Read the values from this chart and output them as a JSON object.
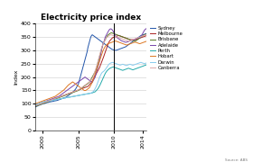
{
  "title": "Electricity price index",
  "ylabel": "Index",
  "source": "Source: ABS",
  "x_ticks": [
    "2000",
    "2005",
    "2010",
    "2014"
  ],
  "vline_year": 2010,
  "year_start": 1999,
  "year_end": 2014.5,
  "ylim": [
    0,
    400
  ],
  "yticks": [
    0,
    50,
    100,
    150,
    200,
    250,
    300,
    350,
    400
  ],
  "cities": [
    "Sydney",
    "Melbourne",
    "Brisbane",
    "Adelaide",
    "Perth",
    "Hobart",
    "Darwin",
    "Canberra"
  ],
  "colors": {
    "Sydney": "#2255aa",
    "Melbourne": "#aa2222",
    "Brisbane": "#557722",
    "Adelaide": "#7744aa",
    "Perth": "#22aaaa",
    "Hobart": "#dd7722",
    "Darwin": "#88ccee",
    "Canberra": "#ddaaaa"
  },
  "series": {
    "Sydney": [
      88,
      89,
      90,
      91,
      93,
      94,
      95,
      96,
      97,
      98,
      99,
      100,
      101,
      101,
      102,
      103,
      104,
      105,
      105,
      106,
      107,
      107,
      108,
      108,
      109,
      109,
      110,
      111,
      111,
      112,
      112,
      113,
      114,
      115,
      116,
      117,
      118,
      119,
      120,
      121,
      122,
      123,
      124,
      125,
      127,
      129,
      131,
      133,
      135,
      137,
      139,
      141,
      143,
      146,
      149,
      152,
      155,
      160,
      165,
      170,
      175,
      185,
      195,
      205,
      215,
      225,
      235,
      245,
      255,
      265,
      275,
      285,
      295,
      310,
      320,
      330,
      340,
      350,
      355,
      358,
      356,
      354,
      352,
      350,
      348,
      346,
      344,
      342,
      340,
      338,
      336,
      334,
      332,
      330,
      328,
      326,
      324,
      322,
      320,
      318,
      316,
      314,
      312,
      310,
      308,
      306,
      304,
      303,
      302,
      301,
      300,
      300,
      300,
      301,
      302,
      303,
      304,
      305,
      306,
      307,
      308,
      309,
      310,
      311,
      312,
      313,
      315,
      317,
      319,
      321,
      323,
      325,
      327,
      329,
      331,
      333,
      335,
      337,
      339,
      341,
      343,
      345,
      347,
      349,
      351,
      353,
      355,
      356,
      357,
      358,
      359,
      360,
      361,
      362,
      363
    ],
    "Melbourne": [
      92,
      93,
      94,
      95,
      96,
      97,
      98,
      99,
      100,
      101,
      102,
      103,
      104,
      105,
      106,
      107,
      108,
      109,
      110,
      111,
      112,
      113,
      114,
      115,
      116,
      117,
      118,
      119,
      120,
      121,
      122,
      123,
      124,
      125,
      126,
      127,
      128,
      129,
      130,
      131,
      132,
      133,
      134,
      135,
      136,
      137,
      138,
      139,
      140,
      141,
      142,
      143,
      144,
      145,
      146,
      147,
      148,
      149,
      150,
      151,
      152,
      153,
      154,
      155,
      156,
      157,
      158,
      159,
      160,
      161,
      162,
      163,
      164,
      165,
      168,
      171,
      174,
      177,
      180,
      185,
      190,
      195,
      200,
      205,
      210,
      215,
      220,
      225,
      230,
      235,
      242,
      249,
      256,
      263,
      270,
      278,
      286,
      294,
      302,
      310,
      318,
      325,
      330,
      335,
      338,
      341,
      344,
      347,
      348,
      349,
      350,
      351,
      352,
      353,
      354,
      355,
      355,
      354,
      353,
      352,
      351,
      350,
      349,
      348,
      347,
      346,
      345,
      344,
      343,
      342,
      341,
      340,
      340,
      340,
      340,
      340,
      340,
      340,
      340,
      340,
      341,
      342,
      343,
      344,
      345,
      346,
      347,
      348,
      349,
      350,
      351,
      352,
      353,
      354,
      355
    ],
    "Brisbane": [
      90,
      91,
      92,
      93,
      94,
      95,
      96,
      97,
      98,
      99,
      100,
      101,
      102,
      103,
      104,
      105,
      106,
      107,
      108,
      109,
      110,
      111,
      112,
      113,
      114,
      115,
      116,
      117,
      118,
      119,
      120,
      121,
      122,
      123,
      124,
      125,
      126,
      127,
      128,
      129,
      130,
      131,
      132,
      133,
      134,
      135,
      136,
      137,
      138,
      139,
      140,
      141,
      142,
      143,
      144,
      145,
      146,
      147,
      148,
      149,
      150,
      152,
      154,
      156,
      158,
      160,
      162,
      164,
      166,
      168,
      170,
      172,
      174,
      176,
      178,
      180,
      185,
      190,
      195,
      200,
      205,
      210,
      215,
      220,
      225,
      235,
      245,
      255,
      265,
      275,
      285,
      295,
      305,
      315,
      325,
      330,
      335,
      340,
      345,
      350,
      355,
      358,
      360,
      362,
      364,
      365,
      365,
      364,
      363,
      362,
      361,
      360,
      359,
      358,
      357,
      356,
      355,
      354,
      353,
      352,
      351,
      350,
      349,
      348,
      347,
      346,
      345,
      344,
      343,
      342,
      341,
      340,
      339,
      338,
      337,
      336,
      335,
      334,
      333,
      335,
      337,
      339,
      341,
      343,
      345,
      347,
      349,
      351,
      353,
      355,
      357,
      358,
      359,
      360,
      361
    ],
    "Adelaide": [
      95,
      96,
      97,
      98,
      99,
      100,
      101,
      102,
      103,
      104,
      105,
      106,
      107,
      108,
      109,
      110,
      111,
      112,
      113,
      114,
      115,
      116,
      117,
      118,
      119,
      120,
      121,
      122,
      123,
      124,
      125,
      126,
      127,
      128,
      130,
      132,
      134,
      136,
      138,
      140,
      142,
      144,
      146,
      148,
      150,
      152,
      154,
      156,
      158,
      160,
      162,
      164,
      166,
      168,
      170,
      172,
      174,
      176,
      178,
      180,
      182,
      184,
      186,
      188,
      190,
      192,
      194,
      196,
      198,
      200,
      198,
      196,
      194,
      192,
      190,
      188,
      186,
      184,
      182,
      180,
      185,
      190,
      195,
      200,
      210,
      220,
      230,
      240,
      250,
      260,
      275,
      290,
      305,
      315,
      325,
      330,
      340,
      350,
      355,
      360,
      365,
      370,
      375,
      378,
      380,
      380,
      378,
      375,
      370,
      365,
      360,
      355,
      350,
      348,
      346,
      344,
      342,
      340,
      338,
      336,
      335,
      334,
      333,
      332,
      331,
      330,
      330,
      331,
      332,
      333,
      334,
      335,
      336,
      337,
      338,
      339,
      340,
      341,
      342,
      343,
      344,
      345,
      346,
      347,
      348,
      349,
      350,
      355,
      360,
      365,
      370,
      375,
      378,
      380,
      382
    ],
    "Perth": [
      95,
      96,
      97,
      98,
      99,
      100,
      101,
      102,
      103,
      104,
      105,
      106,
      107,
      108,
      108,
      109,
      109,
      110,
      110,
      111,
      111,
      112,
      112,
      113,
      113,
      114,
      114,
      115,
      115,
      116,
      116,
      117,
      117,
      118,
      118,
      119,
      119,
      120,
      120,
      121,
      121,
      122,
      122,
      123,
      123,
      124,
      124,
      125,
      125,
      126,
      126,
      127,
      127,
      128,
      128,
      129,
      129,
      130,
      130,
      131,
      131,
      132,
      132,
      133,
      133,
      134,
      134,
      135,
      135,
      136,
      136,
      137,
      137,
      138,
      138,
      139,
      139,
      140,
      140,
      141,
      142,
      143,
      144,
      145,
      148,
      151,
      154,
      157,
      162,
      167,
      172,
      178,
      184,
      190,
      196,
      202,
      208,
      214,
      218,
      222,
      225,
      228,
      230,
      232,
      234,
      235,
      236,
      237,
      238,
      237,
      236,
      235,
      234,
      233,
      232,
      231,
      230,
      229,
      228,
      227,
      226,
      225,
      226,
      227,
      228,
      229,
      230,
      231,
      232,
      233,
      232,
      231,
      230,
      229,
      228,
      227,
      228,
      229,
      230,
      231,
      232,
      233,
      234,
      235,
      236,
      237,
      238,
      239,
      240,
      241,
      242,
      243,
      244,
      245,
      246
    ],
    "Hobart": [
      100,
      101,
      102,
      103,
      104,
      105,
      106,
      107,
      108,
      109,
      110,
      111,
      112,
      113,
      114,
      115,
      116,
      117,
      118,
      119,
      120,
      121,
      122,
      123,
      124,
      125,
      126,
      127,
      128,
      130,
      132,
      134,
      136,
      138,
      140,
      142,
      144,
      146,
      148,
      150,
      152,
      155,
      158,
      161,
      164,
      167,
      170,
      172,
      174,
      176,
      178,
      180,
      182,
      180,
      178,
      176,
      174,
      172,
      170,
      168,
      166,
      164,
      162,
      160,
      158,
      156,
      154,
      152,
      150,
      150,
      150,
      152,
      154,
      156,
      158,
      160,
      165,
      170,
      175,
      180,
      188,
      196,
      204,
      212,
      220,
      228,
      236,
      244,
      252,
      260,
      268,
      276,
      284,
      292,
      300,
      305,
      310,
      315,
      318,
      321,
      324,
      325,
      326,
      327,
      328,
      329,
      330,
      331,
      332,
      333,
      334,
      335,
      334,
      333,
      332,
      331,
      330,
      329,
      328,
      327,
      326,
      325,
      324,
      323,
      322,
      321,
      320,
      320,
      321,
      322,
      323,
      324,
      325,
      326,
      327,
      328,
      329,
      330,
      330,
      330,
      329,
      328,
      327,
      326,
      325,
      325,
      326,
      327,
      328,
      329,
      330,
      331,
      332,
      333,
      334
    ],
    "Darwin": [
      95,
      96,
      97,
      98,
      99,
      100,
      101,
      102,
      103,
      104,
      105,
      106,
      107,
      108,
      108,
      109,
      109,
      110,
      110,
      111,
      111,
      112,
      112,
      113,
      113,
      114,
      114,
      115,
      115,
      116,
      116,
      117,
      117,
      118,
      118,
      119,
      119,
      120,
      120,
      121,
      121,
      122,
      122,
      123,
      123,
      124,
      124,
      125,
      125,
      126,
      126,
      127,
      127,
      128,
      128,
      129,
      129,
      130,
      130,
      131,
      131,
      132,
      132,
      133,
      133,
      134,
      134,
      135,
      135,
      136,
      136,
      137,
      137,
      138,
      138,
      139,
      139,
      140,
      141,
      143,
      145,
      148,
      152,
      157,
      162,
      168,
      175,
      183,
      191,
      198,
      204,
      210,
      215,
      218,
      220,
      222,
      225,
      228,
      232,
      236,
      240,
      244,
      248,
      250,
      252,
      253,
      254,
      255,
      254,
      253,
      252,
      251,
      250,
      249,
      248,
      247,
      246,
      245,
      245,
      246,
      247,
      248,
      247,
      246,
      245,
      244,
      243,
      244,
      245,
      246,
      247,
      248,
      247,
      246,
      245,
      244,
      245,
      246,
      247,
      248,
      249,
      250,
      251,
      252,
      253,
      254,
      255,
      254,
      253,
      252,
      251,
      250,
      251,
      252,
      253
    ],
    "Canberra": [
      92,
      93,
      94,
      95,
      96,
      97,
      98,
      99,
      100,
      101,
      102,
      103,
      104,
      105,
      106,
      107,
      108,
      109,
      110,
      111,
      112,
      113,
      114,
      115,
      116,
      117,
      118,
      119,
      120,
      121,
      122,
      123,
      124,
      125,
      126,
      127,
      128,
      129,
      130,
      131,
      132,
      133,
      134,
      135,
      136,
      137,
      138,
      139,
      140,
      141,
      142,
      143,
      144,
      145,
      146,
      147,
      148,
      149,
      150,
      151,
      152,
      154,
      156,
      158,
      160,
      162,
      164,
      166,
      168,
      170,
      172,
      174,
      176,
      178,
      180,
      182,
      185,
      188,
      191,
      195,
      200,
      208,
      216,
      224,
      232,
      240,
      250,
      260,
      270,
      280,
      290,
      300,
      310,
      318,
      325,
      330,
      335,
      340,
      345,
      348,
      350,
      352,
      354,
      356,
      358,
      358,
      357,
      356,
      355,
      354,
      353,
      352,
      351,
      350,
      349,
      348,
      347,
      346,
      345,
      344,
      343,
      342,
      341,
      340,
      339,
      338,
      337,
      336,
      335,
      334,
      335,
      336,
      337,
      338,
      339,
      340,
      341,
      342,
      343,
      344,
      345,
      346,
      347,
      348,
      349,
      350,
      351,
      352,
      353,
      354,
      355,
      356,
      357,
      358,
      359
    ]
  }
}
